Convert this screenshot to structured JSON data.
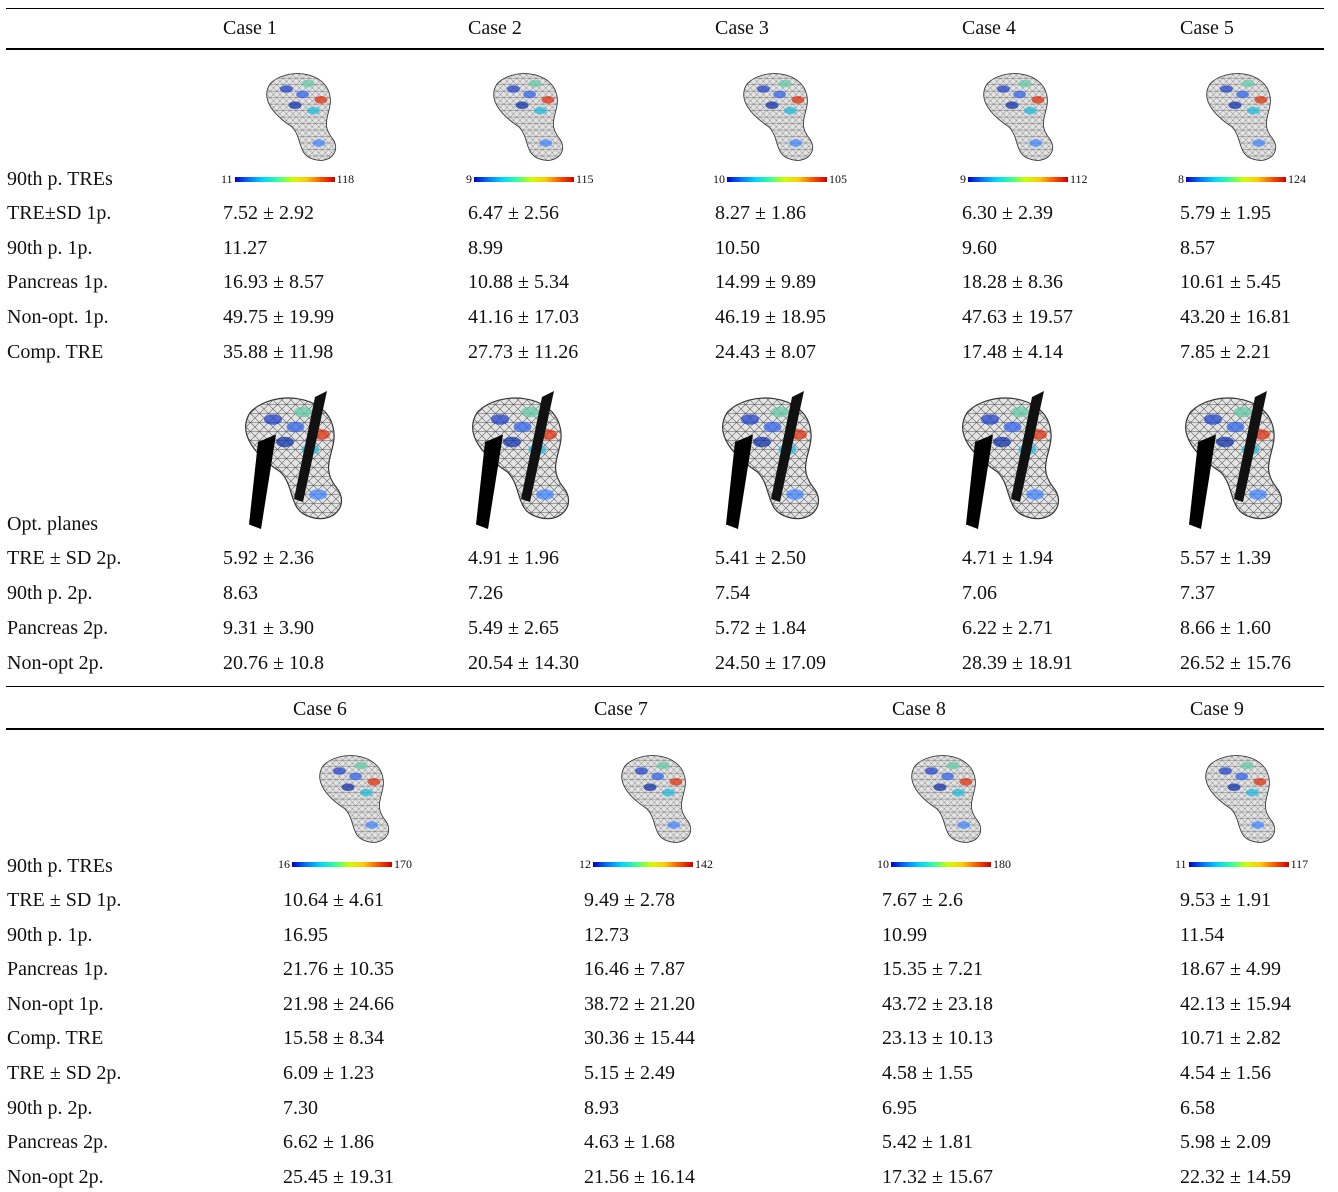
{
  "top_section": {
    "case_headers": [
      "Case 1",
      "Case 2",
      "Case 3",
      "Case 4",
      "Case 5"
    ],
    "colorbar_label": "90th p. TREs",
    "colorbars": [
      {
        "min": "11",
        "max": "118"
      },
      {
        "min": "9",
        "max": "115"
      },
      {
        "min": "10",
        "max": "105"
      },
      {
        "min": "9",
        "max": "112"
      },
      {
        "min": "8",
        "max": "124"
      }
    ],
    "rows_1p": [
      {
        "label": "TRE±SD 1p.",
        "values": [
          "7.52 ± 2.92",
          "6.47 ± 2.56",
          "8.27 ± 1.86",
          "6.30 ± 2.39",
          "5.79 ± 1.95"
        ]
      },
      {
        "label": "90th p. 1p.",
        "values": [
          "11.27",
          "8.99",
          "10.50",
          "9.60",
          "8.57"
        ]
      },
      {
        "label": "Pancreas 1p.",
        "values": [
          "16.93 ± 8.57",
          "10.88 ± 5.34",
          "14.99 ± 9.89",
          "18.28 ± 8.36",
          "10.61 ± 5.45"
        ]
      },
      {
        "label": "Non-opt. 1p.",
        "values": [
          "49.75 ± 19.99",
          "41.16 ± 17.03",
          "46.19 ± 18.95",
          "47.63 ± 19.57",
          "43.20 ± 16.81"
        ]
      },
      {
        "label": "Comp. TRE",
        "values": [
          "35.88 ± 11.98",
          "27.73 ± 11.26",
          "24.43 ± 8.07",
          "17.48 ± 4.14",
          "7.85 ± 2.21"
        ]
      }
    ],
    "planes_label": "Opt. planes",
    "rows_2p": [
      {
        "label": "TRE ± SD 2p.",
        "values": [
          "5.92 ± 2.36",
          "4.91 ± 1.96",
          "5.41 ± 2.50",
          "4.71 ± 1.94",
          "5.57 ± 1.39"
        ]
      },
      {
        "label": "90th p. 2p.",
        "values": [
          "8.63",
          "7.26",
          "7.54",
          "7.06",
          "7.37"
        ]
      },
      {
        "label": "Pancreas 2p.",
        "values": [
          "9.31 ± 3.90",
          "5.49 ± 2.65",
          "5.72 ± 1.84",
          "6.22 ± 2.71",
          "8.66 ± 1.60"
        ]
      },
      {
        "label": "Non-opt 2p.",
        "values": [
          "20.76 ± 10.8",
          "20.54 ± 14.30",
          "24.50 ± 17.09",
          "28.39 ± 18.91",
          "26.52 ± 15.76"
        ]
      }
    ]
  },
  "bottom_section": {
    "case_headers": [
      "Case 6",
      "Case 7",
      "Case 8",
      "Case 9"
    ],
    "colorbar_label": "90th p. TREs",
    "colorbars": [
      {
        "min": "16",
        "max": "170"
      },
      {
        "min": "12",
        "max": "142"
      },
      {
        "min": "10",
        "max": "180"
      },
      {
        "min": "11",
        "max": "117"
      }
    ],
    "rows": [
      {
        "label": "TRE ± SD 1p.",
        "values": [
          "10.64 ± 4.61",
          "9.49 ± 2.78",
          "7.67 ± 2.6",
          "9.53 ± 1.91"
        ]
      },
      {
        "label": "90th p. 1p.",
        "values": [
          "16.95",
          "12.73",
          "10.99",
          "11.54"
        ]
      },
      {
        "label": "Pancreas 1p.",
        "values": [
          "21.76 ± 10.35",
          "16.46 ± 7.87",
          "15.35 ± 7.21",
          "18.67 ± 4.99"
        ]
      },
      {
        "label": "Non-opt 1p.",
        "values": [
          "21.98 ± 24.66",
          "38.72 ± 21.20",
          "43.72 ± 23.18",
          "42.13 ± 15.94"
        ]
      },
      {
        "label": "Comp. TRE",
        "values": [
          "15.58 ± 8.34",
          "30.36 ± 15.44",
          "23.13 ± 10.13",
          "10.71 ± 2.82"
        ]
      },
      {
        "label": "TRE ± SD 2p.",
        "values": [
          "6.09 ± 1.23",
          "5.15 ± 2.49",
          "4.58 ± 1.55",
          "4.54 ± 1.56"
        ]
      },
      {
        "label": "90th p. 2p.",
        "values": [
          "7.30",
          "8.93",
          "6.95",
          "6.58"
        ]
      },
      {
        "label": "Pancreas 2p.",
        "values": [
          "6.62 ± 1.86",
          "4.63 ± 1.68",
          "5.42 ± 1.81",
          "5.98 ± 2.09"
        ]
      },
      {
        "label": "Non-opt 2p.",
        "values": [
          "25.45 ± 19.31",
          "21.56 ± 16.14",
          "17.32 ± 15.67",
          "22.32 ± 14.59"
        ]
      }
    ]
  }
}
